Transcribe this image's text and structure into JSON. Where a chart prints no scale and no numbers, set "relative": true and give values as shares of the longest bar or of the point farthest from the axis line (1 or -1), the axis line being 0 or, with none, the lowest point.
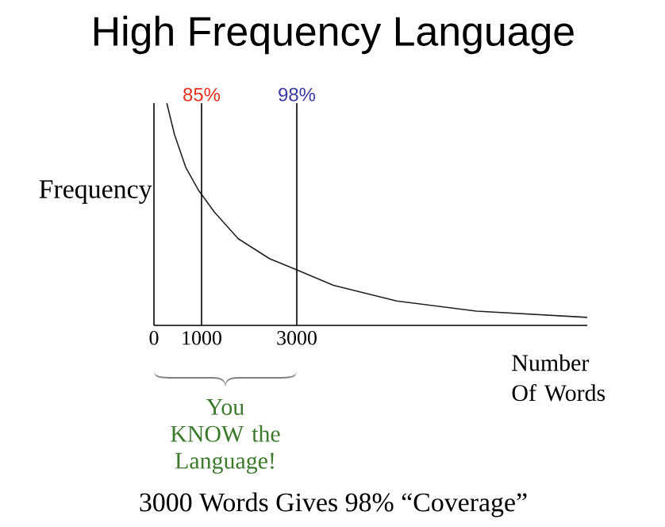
{
  "chart_data": {
    "type": "line",
    "title": "High Frequency Language",
    "ylabel": "Frequency",
    "xlabel": "Number Of Words",
    "relative": true,
    "xlim": [
      0,
      9100
    ],
    "xticks": [
      0,
      1000,
      3000
    ],
    "x": [
      270,
      430,
      670,
      930,
      1270,
      1770,
      2430,
      3000,
      3770,
      5100,
      6770,
      9100
    ],
    "series": [
      {
        "color": "#222222",
        "values": [
          1.0,
          0.86,
          0.71,
          0.61,
          0.51,
          0.39,
          0.3,
          0.25,
          0.18,
          0.11,
          0.064,
          0.036
        ]
      }
    ],
    "ref_lines": [
      {
        "axis": "x",
        "value": 1000
      },
      {
        "axis": "x",
        "value": 3000
      }
    ],
    "annotations": [
      "You KNOW the Language!",
      "3000 Words Gives 98% “Coverage”",
      {
        "text": "85%",
        "x": 1000,
        "y": 1.0
      },
      {
        "text": "98%",
        "x": 3000,
        "y": 1.0
      }
    ]
  }
}
